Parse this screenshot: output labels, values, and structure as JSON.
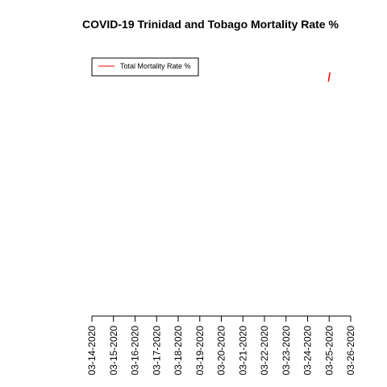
{
  "chart_data": {
    "type": "line",
    "title": "COVID-19 Trinidad and Tobago Mortality Rate %",
    "xlabel": "",
    "ylabel": "",
    "x_ticks": [
      "03-14-2020",
      "03-15-2020",
      "03-16-2020",
      "03-17-2020",
      "03-18-2020",
      "03-19-2020",
      "03-20-2020",
      "03-21-2020",
      "03-22-2020",
      "03-23-2020",
      "03-24-2020",
      "03-25-2020",
      "03-26-2020"
    ],
    "xlim": [
      "03-14-2020",
      "03-26-2020"
    ],
    "ylim": [
      0,
      3.5
    ],
    "grid": false,
    "legend": {
      "position": "top-left",
      "entries": [
        {
          "name": "Total Mortality Rate %",
          "color": "#ff0000"
        }
      ]
    },
    "series": [
      {
        "name": "Total Mortality Rate %",
        "color": "#ff0000",
        "points": [
          {
            "x": "03-25-2020",
            "y": 3.0
          },
          {
            "x": "03-25-2020",
            "y": 3.12
          }
        ]
      }
    ]
  }
}
